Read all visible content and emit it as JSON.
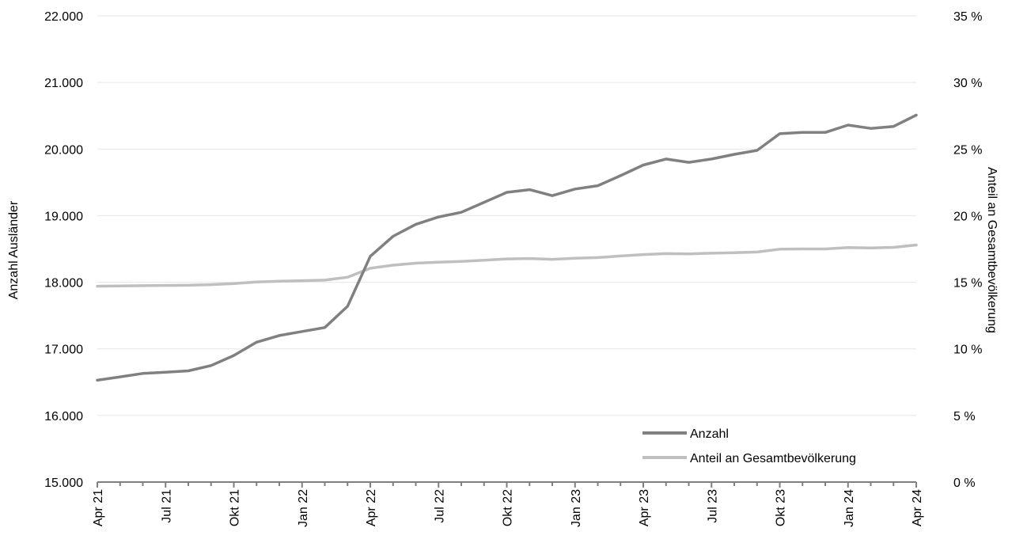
{
  "chart_data": {
    "type": "line",
    "x": [
      "Apr 21",
      "Mai 21",
      "Jun 21",
      "Jul 21",
      "Aug 21",
      "Sep 21",
      "Okt 21",
      "Nov 21",
      "Dez 21",
      "Jan 22",
      "Feb 22",
      "Mrz 22",
      "Apr 22",
      "Mai 22",
      "Jun 22",
      "Jul 22",
      "Aug 22",
      "Sep 22",
      "Okt 22",
      "Nov 22",
      "Dez 22",
      "Jan 23",
      "Feb 23",
      "Mrz 23",
      "Apr 23",
      "Mai 23",
      "Jun 23",
      "Jul 23",
      "Aug 23",
      "Sep 23",
      "Okt 23",
      "Nov 23",
      "Dez 23",
      "Jan 24",
      "Feb 24",
      "Mrz 24",
      "Apr 24"
    ],
    "x_tick_labels": [
      "Apr 21",
      "Jul 21",
      "Okt 21",
      "Jan 22",
      "Apr 22",
      "Jul 22",
      "Okt 22",
      "Jan 23",
      "Apr 23",
      "Jul 23",
      "Okt 23",
      "Jan 24",
      "Apr 24"
    ],
    "series": [
      {
        "name": "Anzahl",
        "axis": "left",
        "color": "#808080",
        "values": [
          16530,
          16580,
          16630,
          16650,
          16670,
          16750,
          16900,
          17100,
          17200,
          17260,
          17320,
          17640,
          18390,
          18690,
          18870,
          18980,
          19050,
          19200,
          19350,
          19390,
          19300,
          19400,
          19450,
          19600,
          19760,
          19850,
          19800,
          19850,
          19920,
          19980,
          20230,
          20250,
          20250,
          20360,
          20310,
          20340,
          20510
        ]
      },
      {
        "name": "Anteil an Gesamtbevölkerung",
        "axis": "right",
        "color": "#bfbfbf",
        "values": [
          14.7,
          14.72,
          14.74,
          14.76,
          14.77,
          14.82,
          14.9,
          15.02,
          15.08,
          15.12,
          15.16,
          15.38,
          16.05,
          16.28,
          16.43,
          16.5,
          16.56,
          16.65,
          16.75,
          16.78,
          16.72,
          16.8,
          16.85,
          16.97,
          17.08,
          17.15,
          17.13,
          17.18,
          17.22,
          17.27,
          17.48,
          17.5,
          17.5,
          17.6,
          17.57,
          17.62,
          17.8
        ]
      }
    ],
    "y_left": {
      "label": "Anzahl Ausländer",
      "ylim": [
        15000,
        22000
      ],
      "ticks": [
        "15.000",
        "16.000",
        "17.000",
        "18.000",
        "19.000",
        "20.000",
        "21.000",
        "22.000"
      ]
    },
    "y_right": {
      "label": "Anteil an Gesamtbevölkerung",
      "ylim": [
        0,
        35
      ],
      "ticks": [
        "0 %",
        "5 %",
        "10 %",
        "15 %",
        "20 %",
        "25 %",
        "30 %",
        "35 %"
      ]
    },
    "grid": true,
    "legend_position": "bottom-right"
  }
}
